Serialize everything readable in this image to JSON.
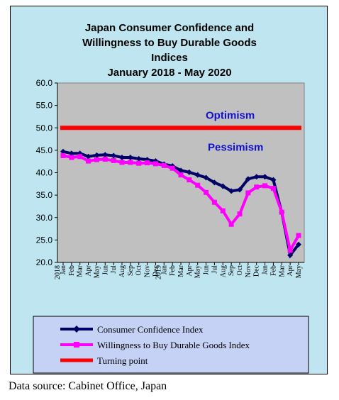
{
  "chart_data": {
    "type": "line",
    "title_lines": [
      "Japan Consumer Confidence and",
      "Willingness to Buy Durable Goods",
      "Indices",
      "January 2018 - May 2020"
    ],
    "ylim": [
      20,
      60
    ],
    "yticks": [
      "60.0",
      "55.0",
      "50.0",
      "45.0",
      "40.0",
      "35.0",
      "30.0",
      "25.0",
      "20.0"
    ],
    "ytick_values": [
      60,
      55,
      50,
      45,
      40,
      35,
      30,
      25,
      20
    ],
    "categories": [
      "Jan",
      "Feb",
      "Mar",
      "Apr",
      "May",
      "Jun",
      "Jul",
      "Aug",
      "Sep",
      "Oct",
      "Nov",
      "Dec",
      "Jan",
      "Feb",
      "Mar",
      "Apr",
      "May",
      "Jun",
      "Jul",
      "Aug",
      "Sep",
      "Oct",
      "Nov",
      "Dec",
      "Jan",
      "Feb",
      "Mar",
      "Apr",
      "May"
    ],
    "year_markers": [
      {
        "index": 0,
        "label": "2018"
      },
      {
        "index": 12,
        "label": "2019"
      }
    ],
    "series": [
      {
        "name": "Consumer Confidence Index",
        "color": "#000066",
        "marker": "diamond",
        "values": [
          44.7,
          44.3,
          44.3,
          43.6,
          43.9,
          44.0,
          43.8,
          43.4,
          43.4,
          43.1,
          42.9,
          42.6,
          41.9,
          41.5,
          40.5,
          40.1,
          39.5,
          38.9,
          37.8,
          37.0,
          35.9,
          36.2,
          38.6,
          39.1,
          39.1,
          38.4,
          31.1,
          21.6,
          24.0
        ]
      },
      {
        "name": "Willingness to Buy Durable Goods Index",
        "color": "#ff00ff",
        "marker": "square",
        "values": [
          43.8,
          43.4,
          43.6,
          42.6,
          42.9,
          43.0,
          42.7,
          42.3,
          42.3,
          42.1,
          42.2,
          42.0,
          41.6,
          41.0,
          39.5,
          38.4,
          37.2,
          35.6,
          33.4,
          31.5,
          28.5,
          30.8,
          35.5,
          36.8,
          37.1,
          36.5,
          31.2,
          22.7,
          26.0
        ]
      }
    ],
    "reference_line": {
      "name": "Turning point",
      "value": 50,
      "color": "#ff0000"
    },
    "annotations": [
      {
        "text": "Optimism"
      },
      {
        "text": "Pessimism"
      }
    ],
    "plot_background": "#c0c0c0",
    "frame_background": "#bfe6f0",
    "legend_background": "#c6d2f5",
    "legend_placement": "bottom",
    "grid": false
  },
  "source_note": "Data source: Cabinet Office, Japan"
}
